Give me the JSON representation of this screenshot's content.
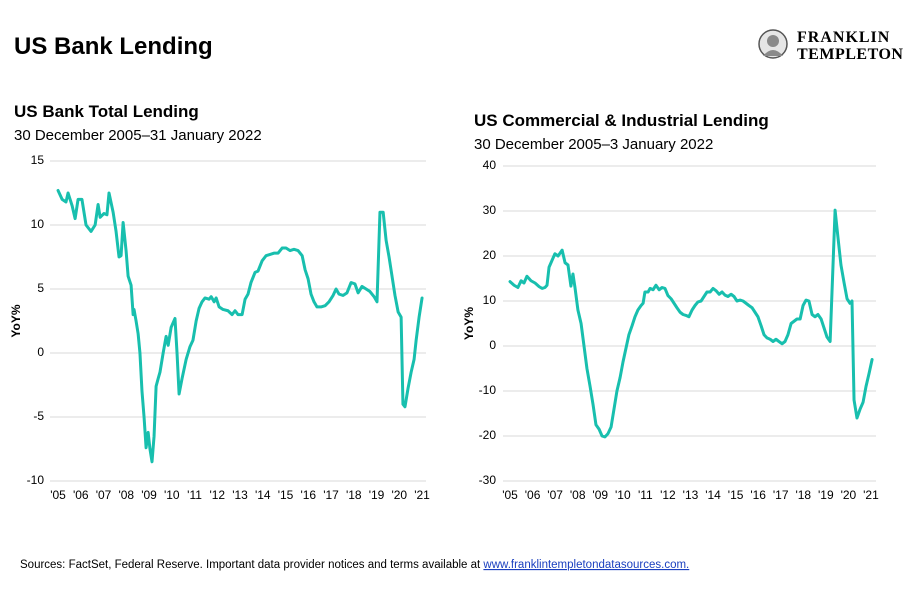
{
  "title": "US Bank Lending",
  "logo": [
    "FRANKLIN",
    "TEMPLETON"
  ],
  "source": "Sources: FactSet, Federal Reserve. Important data provider notices and terms available at ",
  "source_link": "www.franklintempletondatasources.com.",
  "chart_data": [
    {
      "type": "line",
      "title": "US Bank Total Lending",
      "subtitle": "30 December 2005–31 January 2022",
      "ylabel": "YoY%",
      "color": "#18bfae",
      "grid": true,
      "xlim": [
        2004.8,
        2021.6
      ],
      "xticks": [
        {
          "value": 2005,
          "label": "'05"
        },
        {
          "value": 2006,
          "label": "'06"
        },
        {
          "value": 2007,
          "label": "'07"
        },
        {
          "value": 2008,
          "label": "'08"
        },
        {
          "value": 2009,
          "label": "'09"
        },
        {
          "value": 2010,
          "label": "'10"
        },
        {
          "value": 2011,
          "label": "'11"
        },
        {
          "value": 2012,
          "label": "'12"
        },
        {
          "value": 2013,
          "label": "'13"
        },
        {
          "value": 2014,
          "label": "'14"
        },
        {
          "value": 2015,
          "label": "'15"
        },
        {
          "value": 2016,
          "label": "'16"
        },
        {
          "value": 2017,
          "label": "'17"
        },
        {
          "value": 2018,
          "label": "'18"
        },
        {
          "value": 2019,
          "label": "'19"
        },
        {
          "value": 2020,
          "label": "'20"
        },
        {
          "value": 2021,
          "label": "'21"
        }
      ],
      "ylim": [
        -10,
        15
      ],
      "yticks": [
        -10,
        -5,
        0,
        5,
        10,
        15
      ],
      "x": [
        2005.0,
        2005.18,
        2005.35,
        2005.44,
        2005.62,
        2005.75,
        2005.88,
        2006.05,
        2006.23,
        2006.45,
        2006.63,
        2006.76,
        2006.85,
        2007.02,
        2007.15,
        2007.24,
        2007.42,
        2007.55,
        2007.68,
        2007.77,
        2007.86,
        2007.99,
        2008.08,
        2008.21,
        2008.3,
        2008.34,
        2008.43,
        2008.52,
        2008.6,
        2008.69,
        2008.78,
        2008.87,
        2008.96,
        2009.04,
        2009.13,
        2009.22,
        2009.31,
        2009.4,
        2009.48,
        2009.62,
        2009.75,
        2009.84,
        2009.97,
        2010.14,
        2010.23,
        2010.32,
        2010.45,
        2010.63,
        2010.8,
        2010.93,
        2011.07,
        2011.2,
        2011.33,
        2011.46,
        2011.64,
        2011.73,
        2011.86,
        2011.95,
        2012.08,
        2012.25,
        2012.47,
        2012.65,
        2012.78,
        2012.91,
        2013.09,
        2013.22,
        2013.35,
        2013.48,
        2013.66,
        2013.79,
        2013.97,
        2014.14,
        2014.32,
        2014.49,
        2014.67,
        2014.85,
        2015.02,
        2015.2,
        2015.37,
        2015.55,
        2015.73,
        2015.86,
        2015.99,
        2016.12,
        2016.25,
        2016.38,
        2016.56,
        2016.74,
        2016.91,
        2017.09,
        2017.22,
        2017.35,
        2017.53,
        2017.7,
        2017.88,
        2018.05,
        2018.19,
        2018.36,
        2018.54,
        2018.71,
        2018.89,
        2019.02,
        2019.15,
        2019.29,
        2019.42,
        2019.55,
        2019.68,
        2019.81,
        2019.95,
        2020.08,
        2020.16,
        2020.25,
        2020.38,
        2020.52,
        2020.65,
        2020.74,
        2020.87,
        2021.0
      ],
      "values": [
        12.7,
        12.0,
        11.8,
        12.5,
        11.5,
        10.5,
        12.0,
        12.0,
        10.0,
        9.5,
        10.0,
        11.6,
        10.6,
        10.9,
        10.8,
        12.5,
        11.0,
        9.5,
        7.5,
        7.6,
        10.2,
        8.0,
        6.0,
        5.3,
        3.0,
        3.4,
        2.5,
        1.5,
        0.0,
        -3.0,
        -5.0,
        -7.4,
        -6.2,
        -7.5,
        -8.5,
        -6.5,
        -2.6,
        -2.0,
        -1.5,
        0.0,
        1.3,
        0.6,
        2.0,
        2.7,
        0.0,
        -3.2,
        -2.0,
        -0.5,
        0.5,
        1.0,
        2.5,
        3.5,
        4.0,
        4.3,
        4.2,
        4.4,
        4.0,
        4.3,
        3.6,
        3.4,
        3.3,
        3.0,
        3.3,
        3.0,
        3.0,
        4.2,
        4.6,
        5.5,
        6.3,
        6.4,
        7.2,
        7.6,
        7.7,
        7.8,
        7.8,
        8.2,
        8.2,
        8.0,
        8.1,
        8.0,
        7.6,
        6.5,
        5.8,
        4.6,
        4.0,
        3.6,
        3.6,
        3.7,
        4.0,
        4.5,
        5.0,
        4.6,
        4.5,
        4.7,
        5.5,
        5.4,
        4.7,
        5.2,
        5.0,
        4.8,
        4.4,
        4.0,
        11.0,
        11.0,
        8.8,
        7.5,
        6.0,
        4.5,
        3.2,
        2.8,
        -4.0,
        -4.2,
        -2.8,
        -1.5,
        -0.5,
        1.0,
        2.8,
        4.3
      ]
    },
    {
      "type": "line",
      "title": "US Commercial & Industrial Lending",
      "subtitle": "30 December 2005–3 January 2022",
      "ylabel": "YoY%",
      "color": "#18bfae",
      "grid": true,
      "xlim": [
        2004.8,
        2021.6
      ],
      "xticks": [
        {
          "value": 2005,
          "label": "'05"
        },
        {
          "value": 2006,
          "label": "'06"
        },
        {
          "value": 2007,
          "label": "'07"
        },
        {
          "value": 2008,
          "label": "'08"
        },
        {
          "value": 2009,
          "label": "'09"
        },
        {
          "value": 2010,
          "label": "'10"
        },
        {
          "value": 2011,
          "label": "'11"
        },
        {
          "value": 2012,
          "label": "'12"
        },
        {
          "value": 2013,
          "label": "'13"
        },
        {
          "value": 2014,
          "label": "'14"
        },
        {
          "value": 2015,
          "label": "'15"
        },
        {
          "value": 2016,
          "label": "'16"
        },
        {
          "value": 2017,
          "label": "'17"
        },
        {
          "value": 2018,
          "label": "'18"
        },
        {
          "value": 2019,
          "label": "'19"
        },
        {
          "value": 2020,
          "label": "'20"
        },
        {
          "value": 2021,
          "label": "'21"
        }
      ],
      "ylim": [
        -30,
        40
      ],
      "yticks": [
        -30,
        -20,
        -10,
        0,
        10,
        20,
        30,
        40
      ],
      "x": [
        2005.0,
        2005.18,
        2005.35,
        2005.49,
        2005.62,
        2005.75,
        2005.93,
        2006.11,
        2006.29,
        2006.42,
        2006.55,
        2006.64,
        2006.73,
        2006.86,
        2006.99,
        2007.13,
        2007.31,
        2007.44,
        2007.57,
        2007.7,
        2007.79,
        2007.88,
        2008.01,
        2008.15,
        2008.28,
        2008.41,
        2008.55,
        2008.68,
        2008.81,
        2008.95,
        2009.08,
        2009.21,
        2009.34,
        2009.48,
        2009.61,
        2009.74,
        2009.88,
        2010.01,
        2010.14,
        2010.27,
        2010.41,
        2010.54,
        2010.67,
        2010.81,
        2010.9,
        2010.98,
        2011.12,
        2011.21,
        2011.34,
        2011.47,
        2011.61,
        2011.74,
        2011.87,
        2012.0,
        2012.14,
        2012.27,
        2012.4,
        2012.54,
        2012.67,
        2012.8,
        2012.93,
        2013.07,
        2013.2,
        2013.33,
        2013.47,
        2013.6,
        2013.73,
        2013.87,
        2014.0,
        2014.13,
        2014.27,
        2014.4,
        2014.53,
        2014.66,
        2014.8,
        2014.93,
        2015.06,
        2015.2,
        2015.33,
        2015.46,
        2015.59,
        2015.73,
        2015.86,
        2015.99,
        2016.13,
        2016.26,
        2016.39,
        2016.53,
        2016.66,
        2016.79,
        2016.92,
        2017.06,
        2017.19,
        2017.32,
        2017.46,
        2017.59,
        2017.72,
        2017.86,
        2017.99,
        2018.12,
        2018.25,
        2018.39,
        2018.52,
        2018.65,
        2018.79,
        2018.92,
        2019.05,
        2019.19,
        2019.41,
        2019.54,
        2019.67,
        2019.81,
        2019.94,
        2020.07,
        2020.16,
        2020.25,
        2020.38,
        2020.52,
        2020.65,
        2020.78,
        2020.92,
        2021.05
      ],
      "values": [
        14.3,
        13.5,
        13.0,
        14.5,
        14.0,
        15.5,
        14.5,
        14.0,
        13.2,
        12.8,
        13.0,
        13.5,
        17.5,
        19.0,
        20.5,
        20.0,
        21.3,
        18.5,
        18.0,
        13.3,
        16.0,
        13.0,
        8.0,
        5.0,
        0.0,
        -5.0,
        -9.0,
        -13.0,
        -17.5,
        -18.5,
        -20.0,
        -20.2,
        -19.5,
        -18.0,
        -14.0,
        -10.0,
        -7.0,
        -3.5,
        -0.5,
        2.5,
        4.5,
        6.5,
        8.0,
        9.0,
        9.5,
        12.0,
        12.0,
        12.8,
        12.5,
        13.5,
        12.5,
        13.0,
        12.8,
        11.2,
        10.5,
        9.5,
        8.5,
        7.5,
        7.0,
        6.8,
        6.5,
        8.0,
        9.0,
        9.8,
        10.0,
        11.0,
        12.0,
        12.0,
        12.8,
        12.3,
        11.5,
        12.0,
        11.3,
        11.0,
        11.5,
        11.0,
        10.0,
        10.2,
        10.0,
        9.5,
        9.0,
        8.5,
        7.5,
        6.5,
        4.5,
        2.5,
        1.8,
        1.5,
        1.0,
        1.5,
        1.0,
        0.5,
        1.0,
        2.5,
        5.0,
        5.5,
        6.0,
        6.0,
        9.0,
        10.2,
        10.0,
        7.0,
        6.5,
        7.0,
        6.0,
        4.0,
        2.0,
        1.0,
        30.2,
        24.0,
        18.0,
        14.0,
        10.5,
        9.5,
        10.0,
        -12.0,
        -16.0,
        -14.0,
        -12.5,
        -9.0,
        -6.0,
        -3.0
      ]
    }
  ]
}
